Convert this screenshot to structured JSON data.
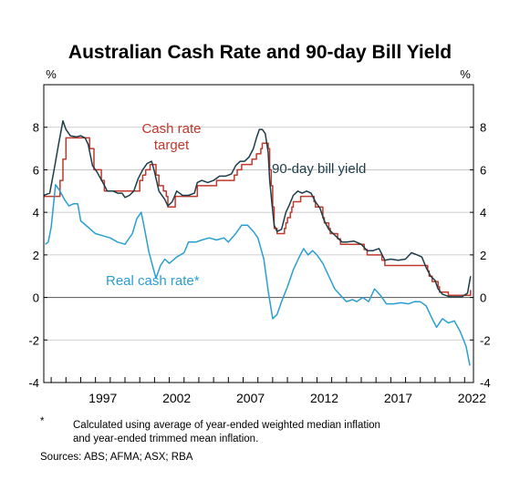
{
  "chart_data": {
    "type": "line",
    "title": "Australian Cash Rate and 90-day Bill Yield",
    "ylabel_left": "%",
    "ylabel_right": "%",
    "xlim": [
      1993.5,
      2022.6
    ],
    "ylim": [
      -4,
      10
    ],
    "yticks": [
      -4,
      -2,
      0,
      2,
      4,
      6,
      8
    ],
    "xticks": [
      1997,
      2002,
      2007,
      2012,
      2017,
      2022
    ],
    "grid": true,
    "series": [
      {
        "name": "Cash rate target",
        "color": "#c0392b",
        "step": true,
        "points": [
          [
            1993.5,
            4.75
          ],
          [
            1994.6,
            5.5
          ],
          [
            1994.8,
            6.5
          ],
          [
            1995.0,
            7.5
          ],
          [
            1996.6,
            7.0
          ],
          [
            1996.9,
            6.0
          ],
          [
            1997.4,
            5.5
          ],
          [
            1997.6,
            5.0
          ],
          [
            1999.9,
            5.0
          ],
          [
            2000.0,
            5.5
          ],
          [
            2000.2,
            5.75
          ],
          [
            2000.4,
            6.0
          ],
          [
            2000.7,
            6.25
          ],
          [
            2001.1,
            5.75
          ],
          [
            2001.3,
            5.25
          ],
          [
            2001.6,
            5.0
          ],
          [
            2001.8,
            4.75
          ],
          [
            2001.9,
            4.25
          ],
          [
            2002.4,
            4.75
          ],
          [
            2002.5,
            4.75
          ],
          [
            2003.9,
            5.25
          ],
          [
            2004.0,
            5.25
          ],
          [
            2005.2,
            5.5
          ],
          [
            2006.4,
            5.75
          ],
          [
            2006.6,
            6.0
          ],
          [
            2006.9,
            6.25
          ],
          [
            2007.6,
            6.5
          ],
          [
            2007.9,
            6.75
          ],
          [
            2008.2,
            7.0
          ],
          [
            2008.3,
            7.25
          ],
          [
            2008.7,
            7.0
          ],
          [
            2008.8,
            6.0
          ],
          [
            2008.9,
            5.25
          ],
          [
            2009.0,
            4.25
          ],
          [
            2009.1,
            3.25
          ],
          [
            2009.3,
            3.0
          ],
          [
            2009.8,
            3.25
          ],
          [
            2009.9,
            3.5
          ],
          [
            2010.0,
            3.75
          ],
          [
            2010.2,
            4.0
          ],
          [
            2010.3,
            4.25
          ],
          [
            2010.4,
            4.5
          ],
          [
            2010.9,
            4.75
          ],
          [
            2011.8,
            4.5
          ],
          [
            2011.9,
            4.25
          ],
          [
            2012.4,
            3.75
          ],
          [
            2012.5,
            3.5
          ],
          [
            2012.8,
            3.25
          ],
          [
            2012.9,
            3.0
          ],
          [
            2013.4,
            2.75
          ],
          [
            2013.6,
            2.5
          ],
          [
            2015.2,
            2.25
          ],
          [
            2015.4,
            2.0
          ],
          [
            2016.4,
            1.75
          ],
          [
            2016.6,
            1.5
          ],
          [
            2019.5,
            1.25
          ],
          [
            2019.6,
            1.0
          ],
          [
            2019.8,
            0.75
          ],
          [
            2020.2,
            0.5
          ],
          [
            2020.3,
            0.25
          ],
          [
            2020.9,
            0.1
          ],
          [
            2022.3,
            0.1
          ],
          [
            2022.4,
            0.35
          ]
        ]
      },
      {
        "name": "90-day bill yield",
        "color": "#1d3c4a",
        "step": false,
        "points": [
          [
            1993.5,
            4.8
          ],
          [
            1993.9,
            4.9
          ],
          [
            1994.2,
            6.0
          ],
          [
            1994.5,
            7.2
          ],
          [
            1994.8,
            8.3
          ],
          [
            1995.0,
            7.9
          ],
          [
            1995.3,
            7.6
          ],
          [
            1995.7,
            7.55
          ],
          [
            1996.0,
            7.6
          ],
          [
            1996.3,
            7.5
          ],
          [
            1996.5,
            7.2
          ],
          [
            1996.8,
            6.2
          ],
          [
            1997.1,
            5.9
          ],
          [
            1997.5,
            5.4
          ],
          [
            1997.8,
            5.0
          ],
          [
            1998.2,
            5.0
          ],
          [
            1998.5,
            4.9
          ],
          [
            1998.8,
            4.9
          ],
          [
            1999.0,
            4.7
          ],
          [
            1999.3,
            4.8
          ],
          [
            1999.6,
            5.0
          ],
          [
            1999.9,
            5.6
          ],
          [
            2000.2,
            6.0
          ],
          [
            2000.5,
            6.3
          ],
          [
            2000.8,
            6.4
          ],
          [
            2001.0,
            5.9
          ],
          [
            2001.3,
            5.0
          ],
          [
            2001.7,
            4.6
          ],
          [
            2001.9,
            4.3
          ],
          [
            2002.2,
            4.5
          ],
          [
            2002.5,
            5.0
          ],
          [
            2002.9,
            4.8
          ],
          [
            2003.3,
            4.8
          ],
          [
            2003.7,
            4.9
          ],
          [
            2003.9,
            5.4
          ],
          [
            2004.2,
            5.5
          ],
          [
            2004.6,
            5.4
          ],
          [
            2005.0,
            5.5
          ],
          [
            2005.4,
            5.7
          ],
          [
            2005.8,
            5.7
          ],
          [
            2006.2,
            5.8
          ],
          [
            2006.5,
            6.2
          ],
          [
            2006.8,
            6.4
          ],
          [
            2007.1,
            6.4
          ],
          [
            2007.4,
            6.6
          ],
          [
            2007.7,
            7.0
          ],
          [
            2007.9,
            7.5
          ],
          [
            2008.1,
            7.9
          ],
          [
            2008.3,
            7.9
          ],
          [
            2008.5,
            7.7
          ],
          [
            2008.7,
            6.8
          ],
          [
            2008.8,
            5.5
          ],
          [
            2008.95,
            4.4
          ],
          [
            2009.1,
            3.4
          ],
          [
            2009.3,
            3.1
          ],
          [
            2009.6,
            3.2
          ],
          [
            2009.9,
            4.0
          ],
          [
            2010.1,
            4.3
          ],
          [
            2010.4,
            4.8
          ],
          [
            2010.7,
            5.0
          ],
          [
            2011.0,
            4.9
          ],
          [
            2011.3,
            5.0
          ],
          [
            2011.6,
            4.9
          ],
          [
            2011.9,
            4.5
          ],
          [
            2012.2,
            4.2
          ],
          [
            2012.5,
            3.6
          ],
          [
            2012.8,
            3.2
          ],
          [
            2013.1,
            3.0
          ],
          [
            2013.4,
            2.8
          ],
          [
            2013.7,
            2.6
          ],
          [
            2014.0,
            2.6
          ],
          [
            2014.5,
            2.65
          ],
          [
            2015.0,
            2.5
          ],
          [
            2015.4,
            2.2
          ],
          [
            2015.8,
            2.2
          ],
          [
            2016.2,
            2.3
          ],
          [
            2016.6,
            1.75
          ],
          [
            2017.0,
            1.8
          ],
          [
            2017.5,
            1.75
          ],
          [
            2018.0,
            1.8
          ],
          [
            2018.4,
            2.1
          ],
          [
            2018.8,
            2.0
          ],
          [
            2019.1,
            1.9
          ],
          [
            2019.4,
            1.4
          ],
          [
            2019.7,
            1.0
          ],
          [
            2020.0,
            0.8
          ],
          [
            2020.2,
            0.4
          ],
          [
            2020.5,
            0.15
          ],
          [
            2021.0,
            0.03
          ],
          [
            2021.8,
            0.03
          ],
          [
            2022.2,
            0.2
          ],
          [
            2022.4,
            1.0
          ]
        ]
      },
      {
        "name": "Real cash rate*",
        "color": "#2b9ed1",
        "step": false,
        "points": [
          [
            1993.6,
            2.5
          ],
          [
            1993.8,
            2.6
          ],
          [
            1994.0,
            3.3
          ],
          [
            1994.3,
            5.3
          ],
          [
            1994.6,
            5.0
          ],
          [
            1994.9,
            4.6
          ],
          [
            1995.2,
            4.3
          ],
          [
            1995.5,
            4.4
          ],
          [
            1995.8,
            4.4
          ],
          [
            1996.0,
            3.6
          ],
          [
            1996.5,
            3.3
          ],
          [
            1997.0,
            3.0
          ],
          [
            1997.5,
            2.9
          ],
          [
            1998.0,
            2.8
          ],
          [
            1998.5,
            2.6
          ],
          [
            1999.0,
            2.5
          ],
          [
            1999.5,
            3.0
          ],
          [
            1999.8,
            3.7
          ],
          [
            2000.1,
            4.0
          ],
          [
            2000.3,
            3.3
          ],
          [
            2000.6,
            2.2
          ],
          [
            2000.9,
            1.4
          ],
          [
            2001.1,
            0.9
          ],
          [
            2001.4,
            1.5
          ],
          [
            2001.7,
            1.8
          ],
          [
            2002.0,
            1.6
          ],
          [
            2002.5,
            1.9
          ],
          [
            2003.0,
            2.1
          ],
          [
            2003.3,
            2.6
          ],
          [
            2003.8,
            2.6
          ],
          [
            2004.2,
            2.7
          ],
          [
            2004.7,
            2.8
          ],
          [
            2005.2,
            2.7
          ],
          [
            2005.7,
            2.8
          ],
          [
            2006.0,
            2.6
          ],
          [
            2006.5,
            3.0
          ],
          [
            2006.9,
            3.4
          ],
          [
            2007.3,
            3.4
          ],
          [
            2007.7,
            3.1
          ],
          [
            2008.0,
            2.8
          ],
          [
            2008.4,
            1.8
          ],
          [
            2008.7,
            0.3
          ],
          [
            2009.0,
            -1.0
          ],
          [
            2009.3,
            -0.8
          ],
          [
            2009.6,
            -0.2
          ],
          [
            2010.0,
            0.5
          ],
          [
            2010.4,
            1.3
          ],
          [
            2010.8,
            1.9
          ],
          [
            2011.1,
            2.3
          ],
          [
            2011.4,
            2.0
          ],
          [
            2011.7,
            2.2
          ],
          [
            2012.0,
            2.0
          ],
          [
            2012.4,
            1.6
          ],
          [
            2012.8,
            1.0
          ],
          [
            2013.2,
            0.4
          ],
          [
            2013.6,
            0.1
          ],
          [
            2014.0,
            -0.2
          ],
          [
            2014.4,
            -0.1
          ],
          [
            2014.7,
            -0.2
          ],
          [
            2015.1,
            0.0
          ],
          [
            2015.5,
            -0.2
          ],
          [
            2015.9,
            0.4
          ],
          [
            2016.3,
            0.1
          ],
          [
            2016.7,
            -0.3
          ],
          [
            2017.2,
            -0.3
          ],
          [
            2017.7,
            -0.25
          ],
          [
            2018.2,
            -0.3
          ],
          [
            2018.6,
            -0.2
          ],
          [
            2019.0,
            -0.2
          ],
          [
            2019.4,
            -0.4
          ],
          [
            2019.8,
            -1.0
          ],
          [
            2020.1,
            -1.4
          ],
          [
            2020.5,
            -1.0
          ],
          [
            2020.9,
            -1.2
          ],
          [
            2021.3,
            -1.1
          ],
          [
            2021.7,
            -1.6
          ],
          [
            2022.1,
            -2.3
          ],
          [
            2022.35,
            -3.2
          ]
        ]
      }
    ],
    "labels": {
      "cash_rate_line1": "Cash rate",
      "cash_rate_line2": "target",
      "bill_yield": "90-day bill yield",
      "real_cash_rate": "Real cash rate*"
    }
  },
  "footnote": {
    "marker": "*",
    "text_line1": "Calculated using average of year-ended weighted median inflation",
    "text_line2": "and year-ended trimmed mean inflation.",
    "sources": "Sources: ABS; AFMA; ASX; RBA"
  },
  "colors": {
    "grid": "#bfbfbf",
    "axis": "#000000",
    "text": "#000000"
  }
}
